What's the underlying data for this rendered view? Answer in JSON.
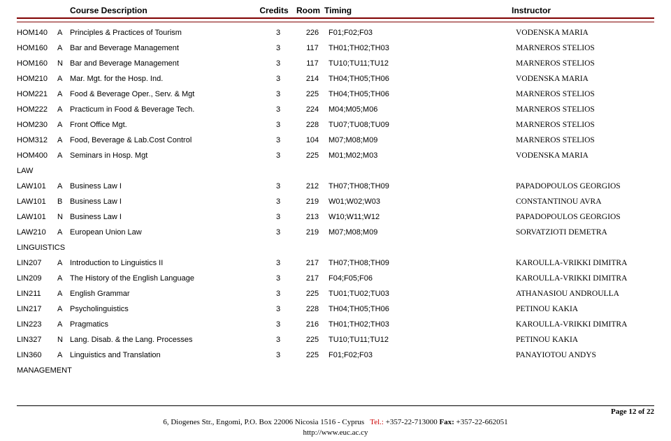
{
  "header": {
    "course_desc": "Course Description",
    "credits": "Credits",
    "room": "Room",
    "timing": "Timing",
    "instructor": "Instructor"
  },
  "rows": [
    {
      "code": "HOM140",
      "sec": "A",
      "desc": "Principles & Practices of Tourism",
      "credits": "3",
      "room": "226",
      "timing": "F01;F02;F03",
      "instructor": "VODENSKA MARIA"
    },
    {
      "code": "HOM160",
      "sec": "A",
      "desc": "Bar and Beverage Management",
      "credits": "3",
      "room": "117",
      "timing": "TH01;TH02;TH03",
      "instructor": "MARNEROS STELIOS"
    },
    {
      "code": "HOM160",
      "sec": "N",
      "desc": "Bar and Beverage Management",
      "credits": "3",
      "room": "117",
      "timing": "TU10;TU11;TU12",
      "instructor": "MARNEROS STELIOS"
    },
    {
      "code": "HOM210",
      "sec": "A",
      "desc": "Mar. Mgt.  for the Hosp. Ind.",
      "credits": "3",
      "room": "214",
      "timing": "TH04;TH05;TH06",
      "instructor": "VODENSKA MARIA"
    },
    {
      "code": "HOM221",
      "sec": "A",
      "desc": "Food & Beverage Oper., Serv. & Mgt",
      "credits": "3",
      "room": "225",
      "timing": "TH04;TH05;TH06",
      "instructor": "MARNEROS STELIOS"
    },
    {
      "code": "HOM222",
      "sec": "A",
      "desc": "Practicum in Food & Beverage Tech.",
      "credits": "3",
      "room": "224",
      "timing": "M04;M05;M06",
      "instructor": "MARNEROS STELIOS"
    },
    {
      "code": "HOM230",
      "sec": "A",
      "desc": "Front Office Mgt.",
      "credits": "3",
      "room": "228",
      "timing": "TU07;TU08;TU09",
      "instructor": "MARNEROS STELIOS"
    },
    {
      "code": "HOM312",
      "sec": "A",
      "desc": "Food, Beverage & Lab.Cost Control",
      "credits": "3",
      "room": "104",
      "timing": "M07;M08;M09",
      "instructor": "MARNEROS STELIOS"
    },
    {
      "code": "HOM400",
      "sec": "A",
      "desc": "Seminars in Hosp. Mgt",
      "credits": "3",
      "room": "225",
      "timing": "M01;M02;M03",
      "instructor": "VODENSKA MARIA"
    }
  ],
  "group_law": "LAW",
  "rows_law": [
    {
      "code": "LAW101",
      "sec": "A",
      "desc": "Business Law I",
      "credits": "3",
      "room": "212",
      "timing": "TH07;TH08;TH09",
      "instructor": "PAPADOPOULOS GEORGIOS"
    },
    {
      "code": "LAW101",
      "sec": "B",
      "desc": "Business Law I",
      "credits": "3",
      "room": "219",
      "timing": "W01;W02;W03",
      "instructor": "CONSTANTINOU AVRA"
    },
    {
      "code": "LAW101",
      "sec": "N",
      "desc": "Business Law I",
      "credits": "3",
      "room": "213",
      "timing": "W10;W11;W12",
      "instructor": "PAPADOPOULOS GEORGIOS"
    },
    {
      "code": "LAW210",
      "sec": "A",
      "desc": "European Union Law",
      "credits": "3",
      "room": "219",
      "timing": "M07;M08;M09",
      "instructor": "SORVATZIOTI DEMETRA"
    }
  ],
  "group_ling": "LINGUISTICS",
  "rows_ling": [
    {
      "code": "LIN207",
      "sec": "A",
      "desc": "Introduction to Linguistics II",
      "credits": "3",
      "room": "217",
      "timing": "TH07;TH08;TH09",
      "instructor": "KAROULLA-VRIKKI DIMITRA"
    },
    {
      "code": "LIN209",
      "sec": "A",
      "desc": "The History of the English Language",
      "credits": "3",
      "room": "217",
      "timing": "F04;F05;F06",
      "instructor": "KAROULLA-VRIKKI DIMITRA"
    },
    {
      "code": "LIN211",
      "sec": "A",
      "desc": "English Grammar",
      "credits": "3",
      "room": "225",
      "timing": "TU01;TU02;TU03",
      "instructor": "ATHANASIOU ANDROULLA"
    },
    {
      "code": "LIN217",
      "sec": "A",
      "desc": "Psycholinguistics",
      "credits": "3",
      "room": "228",
      "timing": "TH04;TH05;TH06",
      "instructor": "PETINOU KAKIA"
    },
    {
      "code": "LIN223",
      "sec": "A",
      "desc": "Pragmatics",
      "credits": "3",
      "room": "216",
      "timing": "TH01;TH02;TH03",
      "instructor": "KAROULLA-VRIKKI DIMITRA"
    },
    {
      "code": "LIN327",
      "sec": "N",
      "desc": "Lang. Disab. & the Lang. Processes",
      "credits": "3",
      "room": "225",
      "timing": "TU10;TU11;TU12",
      "instructor": "PETINOU KAKIA"
    },
    {
      "code": "LIN360",
      "sec": "A",
      "desc": "Linguistics and Translation",
      "credits": "3",
      "room": "225",
      "timing": "F01;F02;F03",
      "instructor": "PANAYIOTOU ANDYS"
    }
  ],
  "group_mgmt": "MANAGEMENT",
  "footer": {
    "page": "Page 12 of 22",
    "addr": "6, Diogenes Str., Engomi, P.O. Box 22006 Nicosia 1516 - Cyprus",
    "tel_label": "Tel.:",
    "tel": " +357-22-713000 ",
    "fax_label": "Fax:",
    "fax": " +357-22-662051",
    "url": "http://www.euc.ac.cy"
  }
}
